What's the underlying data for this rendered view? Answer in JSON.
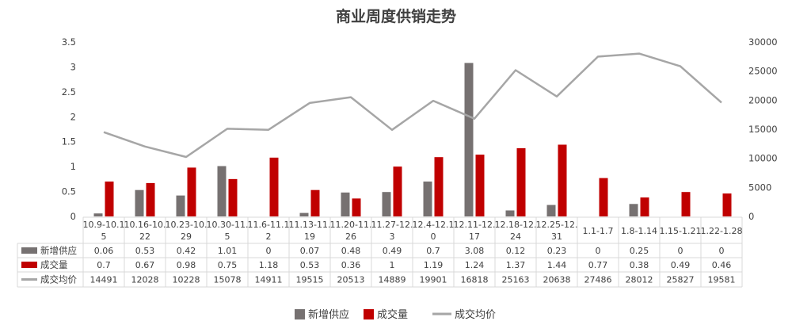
{
  "chart_data": {
    "type": "bar",
    "title": "商业周度供销走势",
    "categories": [
      "10.9-10.15",
      "10.16-10.22",
      "10.23-10.29",
      "10.30-11.5",
      "11.6-11.12",
      "11.13-11.19",
      "11.20-11.26",
      "11.27-12.3",
      "12.4-12.10",
      "12.11-12.17",
      "12.18-12.24",
      "12.25-12.31",
      "1.1-1.7",
      "1.8-1.14",
      "1.15-1.21",
      "1.22-1.28"
    ],
    "category_labels": [
      [
        "10.9-10.1",
        "5"
      ],
      [
        "10.16-10.",
        "22"
      ],
      [
        "10.23-10.",
        "29"
      ],
      [
        "10.30-11.",
        "5"
      ],
      [
        "11.6-11.1",
        "2"
      ],
      [
        "11.13-11.",
        "19"
      ],
      [
        "11.20-11.",
        "26"
      ],
      [
        "11.27-12.",
        "3"
      ],
      [
        "12.4-12.1",
        "0"
      ],
      [
        "12.11-12.",
        "17"
      ],
      [
        "12.18-12.",
        "24"
      ],
      [
        "12.25-12.",
        "31"
      ],
      [
        "1.1-1.7"
      ],
      [
        "1.8-1.14"
      ],
      [
        "1.15-1.21"
      ],
      [
        "1.22-1.28"
      ]
    ],
    "series": [
      {
        "name": "新增供应",
        "type": "bar",
        "axis": "left",
        "color": "#767171",
        "values": [
          0.06,
          0.53,
          0.42,
          1.01,
          0,
          0.07,
          0.48,
          0.49,
          0.7,
          3.08,
          0.12,
          0.23,
          0,
          0.25,
          0,
          0
        ],
        "labels": [
          "0.06",
          "0.53",
          "0.42",
          "1.01",
          "0",
          "0.07",
          "0.48",
          "0.49",
          "0.7",
          "3.08",
          "0.12",
          "0.23",
          "0",
          "0.25",
          "0",
          "0"
        ]
      },
      {
        "name": "成交量",
        "type": "bar",
        "axis": "left",
        "color": "#C00000",
        "values": [
          0.7,
          0.67,
          0.98,
          0.75,
          1.18,
          0.53,
          0.36,
          1,
          1.19,
          1.24,
          1.37,
          1.44,
          0.77,
          0.38,
          0.49,
          0.46
        ],
        "labels": [
          "0.7",
          "0.67",
          "0.98",
          "0.75",
          "1.18",
          "0.53",
          "0.36",
          "1",
          "1.19",
          "1.24",
          "1.37",
          "1.44",
          "0.77",
          "0.38",
          "0.49",
          "0.46"
        ]
      },
      {
        "name": "成交均价",
        "type": "line",
        "axis": "right",
        "color": "#A6A6A6",
        "values": [
          14491,
          12028,
          10228,
          15078,
          14911,
          19515,
          20513,
          14889,
          19901,
          16818,
          25163,
          20638,
          27486,
          28012,
          25827,
          19581
        ],
        "labels": [
          "14491",
          "12028",
          "10228",
          "15078",
          "14911",
          "19515",
          "20513",
          "14889",
          "19901",
          "16818",
          "25163",
          "20638",
          "27486",
          "28012",
          "25827",
          "19581"
        ]
      }
    ],
    "y_left": {
      "min": 0,
      "max": 3.5,
      "ticks": [
        "0",
        "0.5",
        "1",
        "1.5",
        "2",
        "2.5",
        "3",
        "3.5"
      ]
    },
    "y_right": {
      "min": 0,
      "max": 30000,
      "ticks": [
        "0",
        "5000",
        "10000",
        "15000",
        "20000",
        "25000",
        "30000"
      ]
    },
    "grid": false,
    "data_table": true,
    "legend_position": "bottom"
  }
}
